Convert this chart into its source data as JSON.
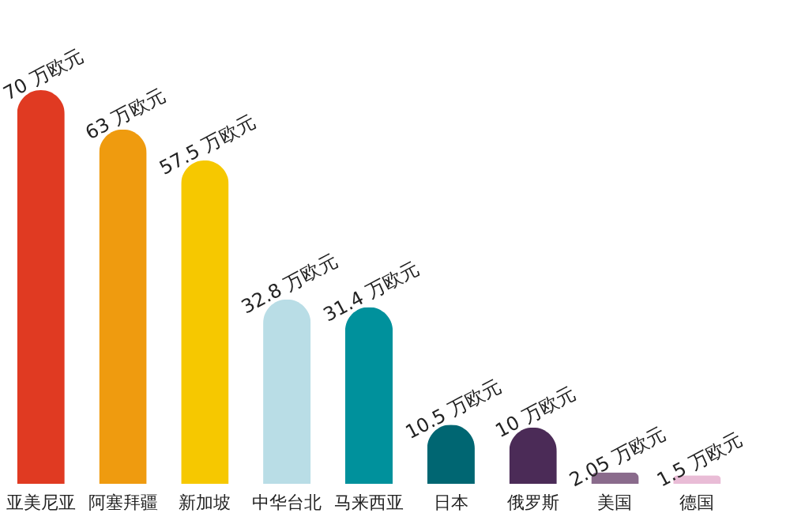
{
  "chart_data": {
    "type": "bar",
    "categories": [
      "亚美尼亚",
      "阿塞拜疆",
      "新加坡",
      "中华台北",
      "马来西亚",
      "日本",
      "俄罗斯",
      "美国",
      "德国"
    ],
    "values": [
      70,
      63,
      57.5,
      32.8,
      31.4,
      10.5,
      10,
      2.05,
      1.5
    ],
    "colors": [
      "#e03a22",
      "#ef9b0f",
      "#f6c800",
      "#b9dde6",
      "#00919c",
      "#006672",
      "#4b2b57",
      "#8a6b8c",
      "#e9bcd6"
    ],
    "value_labels": [
      "70 万欧元",
      "63 万欧元",
      "57.5 万欧元",
      "32.8 万欧元",
      "31.4 万欧元",
      "10.5 万欧元",
      "10 万欧元",
      "2.05 万欧元",
      "1.5 万欧元"
    ],
    "grid": false
  }
}
